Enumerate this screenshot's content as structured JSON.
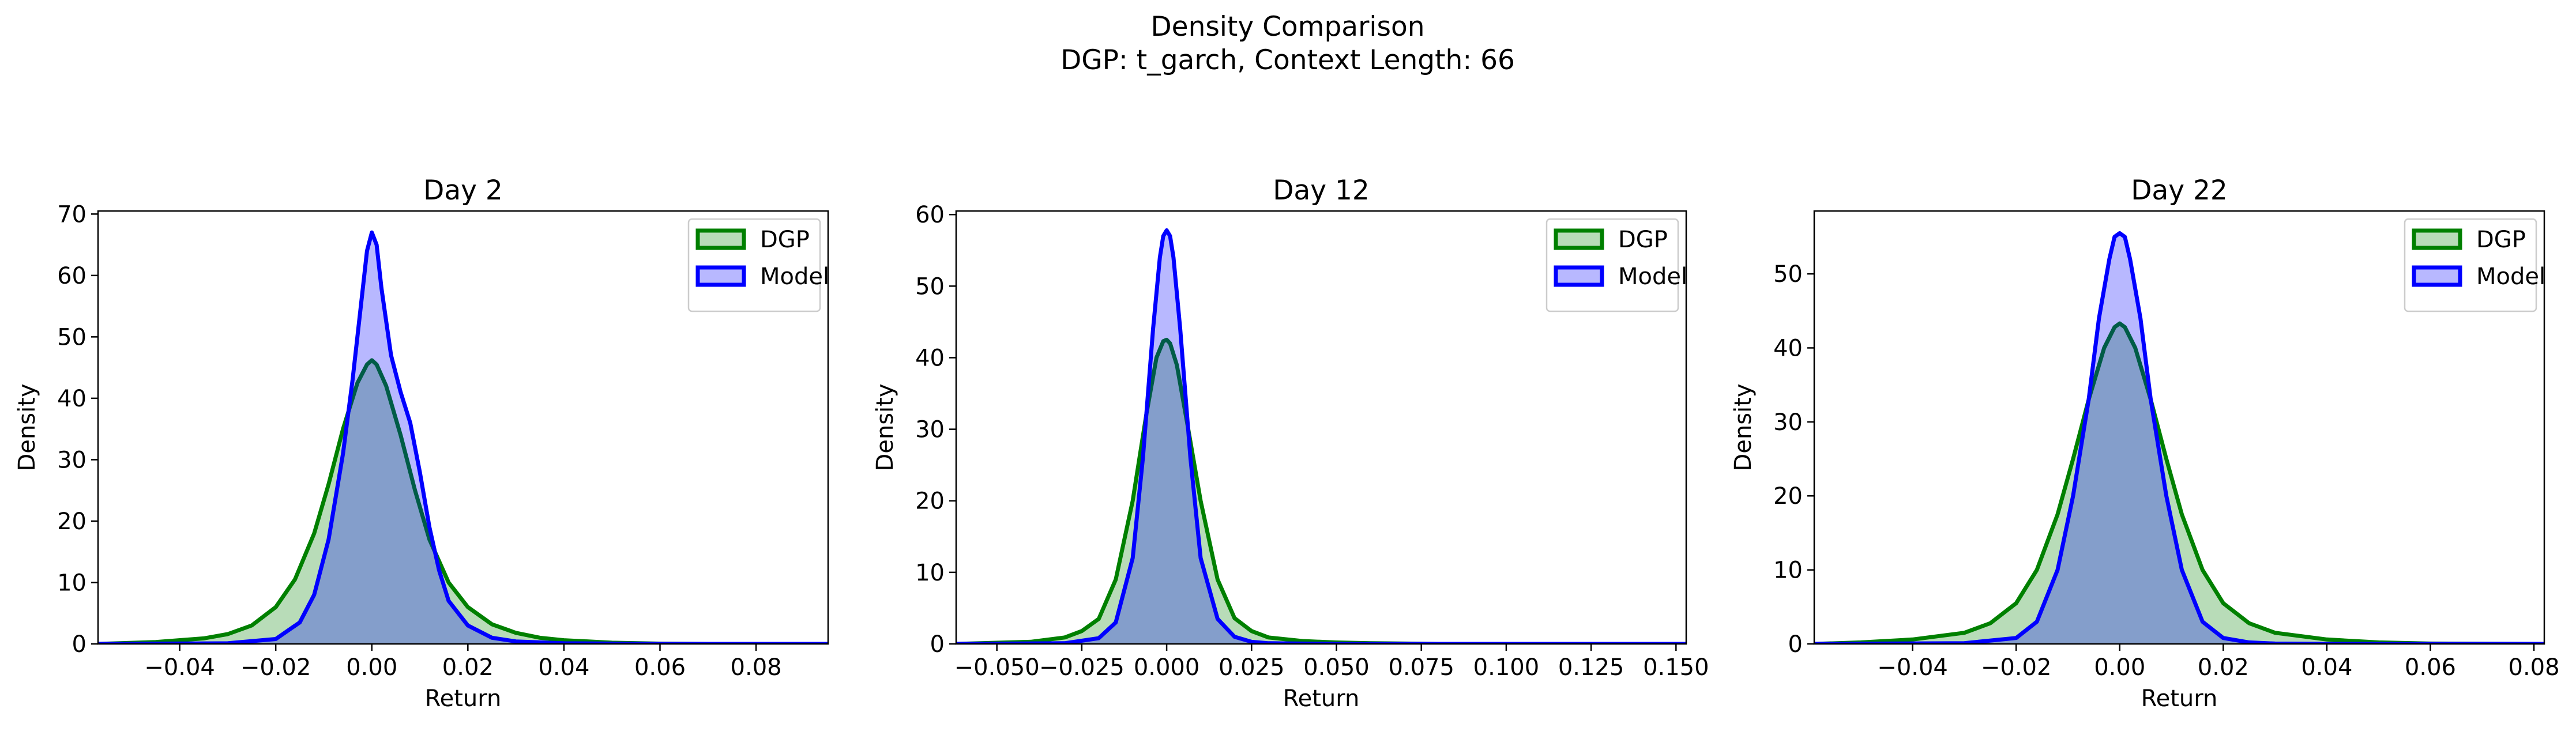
{
  "figure": {
    "title": "Density Comparison",
    "subtitle": "DGP: t_garch, Context Length: 66"
  },
  "colors": {
    "dgp_line": "#008000",
    "dgp_fill": "#008000",
    "model_line": "#0000ff",
    "model_fill": "#0000ff"
  },
  "chart_data": [
    {
      "type": "area",
      "title": "Day 2",
      "xlabel": "Return",
      "ylabel": "Density",
      "xlim": [
        -0.057,
        0.095
      ],
      "ylim": [
        0,
        70.5
      ],
      "xticks": [
        -0.04,
        -0.02,
        0.0,
        0.02,
        0.04,
        0.06,
        0.08
      ],
      "xtick_labels": [
        "−0.04",
        "−0.02",
        "0.00",
        "0.02",
        "0.04",
        "0.06",
        "0.08"
      ],
      "yticks": [
        0,
        10,
        20,
        30,
        40,
        50,
        60,
        70
      ],
      "ytick_labels": [
        "0",
        "10",
        "20",
        "30",
        "40",
        "50",
        "60",
        "70"
      ],
      "legend": "top-right",
      "series": [
        {
          "name": "DGP",
          "x": [
            -0.057,
            -0.045,
            -0.035,
            -0.03,
            -0.025,
            -0.02,
            -0.016,
            -0.012,
            -0.009,
            -0.006,
            -0.003,
            -0.001,
            0.0,
            0.001,
            0.003,
            0.006,
            0.009,
            0.012,
            0.016,
            0.02,
            0.025,
            0.03,
            0.035,
            0.04,
            0.05,
            0.06,
            0.07,
            0.08,
            0.095
          ],
          "y": [
            0.0,
            0.3,
            0.9,
            1.6,
            3.0,
            6.0,
            10.5,
            18.0,
            26.0,
            35.0,
            42.5,
            45.5,
            46.2,
            45.5,
            42.0,
            34.0,
            25.0,
            17.0,
            10.0,
            6.0,
            3.2,
            1.8,
            1.0,
            0.6,
            0.2,
            0.05,
            0.0,
            0.0,
            0.0
          ]
        },
        {
          "name": "Model",
          "x": [
            -0.057,
            -0.03,
            -0.02,
            -0.015,
            -0.012,
            -0.009,
            -0.006,
            -0.004,
            -0.002,
            -0.001,
            0.0,
            0.001,
            0.002,
            0.004,
            0.006,
            0.008,
            0.01,
            0.012,
            0.014,
            0.016,
            0.02,
            0.025,
            0.03,
            0.04,
            0.06,
            0.095
          ],
          "y": [
            0.0,
            0.1,
            0.8,
            3.5,
            8.0,
            17.0,
            31.0,
            43.0,
            57.0,
            64.0,
            67.0,
            65.0,
            58.0,
            47.0,
            41.0,
            36.0,
            28.0,
            19.0,
            12.0,
            7.0,
            3.0,
            1.0,
            0.4,
            0.1,
            0.0,
            0.0
          ]
        }
      ]
    },
    {
      "type": "area",
      "title": "Day 12",
      "xlabel": "Return",
      "ylabel": "Density",
      "xlim": [
        -0.062,
        0.153
      ],
      "ylim": [
        0,
        60.5
      ],
      "xticks": [
        -0.05,
        -0.025,
        0.0,
        0.025,
        0.05,
        0.075,
        0.1,
        0.125,
        0.15
      ],
      "xtick_labels": [
        "−0.050",
        "−0.025",
        "0.000",
        "0.025",
        "0.050",
        "0.075",
        "0.100",
        "0.125",
        "0.150"
      ],
      "yticks": [
        0,
        10,
        20,
        30,
        40,
        50,
        60
      ],
      "ytick_labels": [
        "0",
        "10",
        "20",
        "30",
        "40",
        "50",
        "60"
      ],
      "legend": "top-right",
      "series": [
        {
          "name": "DGP",
          "x": [
            -0.062,
            -0.04,
            -0.03,
            -0.025,
            -0.02,
            -0.015,
            -0.01,
            -0.006,
            -0.003,
            -0.001,
            0.0,
            0.001,
            0.003,
            0.006,
            0.01,
            0.015,
            0.02,
            0.025,
            0.03,
            0.04,
            0.05,
            0.06,
            0.08,
            0.1,
            0.153
          ],
          "y": [
            0.0,
            0.3,
            0.9,
            1.8,
            3.5,
            9.0,
            20.0,
            32.0,
            40.0,
            42.3,
            42.5,
            42.0,
            39.0,
            31.0,
            20.0,
            9.0,
            3.6,
            1.8,
            0.9,
            0.4,
            0.2,
            0.1,
            0.0,
            0.0,
            0.0
          ]
        },
        {
          "name": "Model",
          "x": [
            -0.062,
            -0.03,
            -0.02,
            -0.015,
            -0.01,
            -0.007,
            -0.004,
            -0.002,
            -0.001,
            0.0,
            0.001,
            0.002,
            0.004,
            0.007,
            0.01,
            0.015,
            0.02,
            0.025,
            0.03,
            0.05,
            0.153
          ],
          "y": [
            0.0,
            0.1,
            0.8,
            3.0,
            12.0,
            26.0,
            44.0,
            54.0,
            57.0,
            57.8,
            57.0,
            54.0,
            44.0,
            26.0,
            12.0,
            3.5,
            1.0,
            0.3,
            0.1,
            0.0,
            0.0
          ]
        }
      ]
    },
    {
      "type": "area",
      "title": "Day 22",
      "xlabel": "Return",
      "ylabel": "Density",
      "xlim": [
        -0.059,
        0.082
      ],
      "ylim": [
        0,
        58.5
      ],
      "xticks": [
        -0.04,
        -0.02,
        0.0,
        0.02,
        0.04,
        0.06,
        0.08
      ],
      "xtick_labels": [
        "−0.04",
        "−0.02",
        "0.00",
        "0.02",
        "0.04",
        "0.06",
        "0.08"
      ],
      "yticks": [
        0,
        10,
        20,
        30,
        40,
        50
      ],
      "ytick_labels": [
        "0",
        "10",
        "20",
        "30",
        "40",
        "50"
      ],
      "legend": "top-right",
      "series": [
        {
          "name": "DGP",
          "x": [
            -0.059,
            -0.05,
            -0.04,
            -0.03,
            -0.025,
            -0.02,
            -0.016,
            -0.012,
            -0.009,
            -0.006,
            -0.003,
            -0.001,
            0.0,
            0.001,
            0.003,
            0.006,
            0.009,
            0.012,
            0.016,
            0.02,
            0.025,
            0.03,
            0.04,
            0.05,
            0.06,
            0.082
          ],
          "y": [
            0.0,
            0.2,
            0.6,
            1.5,
            2.8,
            5.5,
            10.0,
            17.5,
            25.0,
            33.0,
            40.0,
            42.8,
            43.3,
            42.8,
            40.0,
            33.0,
            25.0,
            17.5,
            10.0,
            5.5,
            2.8,
            1.5,
            0.6,
            0.2,
            0.05,
            0.0
          ]
        },
        {
          "name": "Model",
          "x": [
            -0.059,
            -0.03,
            -0.02,
            -0.016,
            -0.012,
            -0.009,
            -0.006,
            -0.004,
            -0.002,
            -0.001,
            0.0,
            0.001,
            0.002,
            0.004,
            0.006,
            0.009,
            0.012,
            0.016,
            0.02,
            0.025,
            0.03,
            0.04,
            0.082
          ],
          "y": [
            0.0,
            0.1,
            0.8,
            3.0,
            10.0,
            20.0,
            33.0,
            44.0,
            52.0,
            55.0,
            55.5,
            55.0,
            52.0,
            44.0,
            33.0,
            20.0,
            10.0,
            3.0,
            0.8,
            0.2,
            0.05,
            0.0,
            0.0
          ]
        }
      ]
    }
  ]
}
